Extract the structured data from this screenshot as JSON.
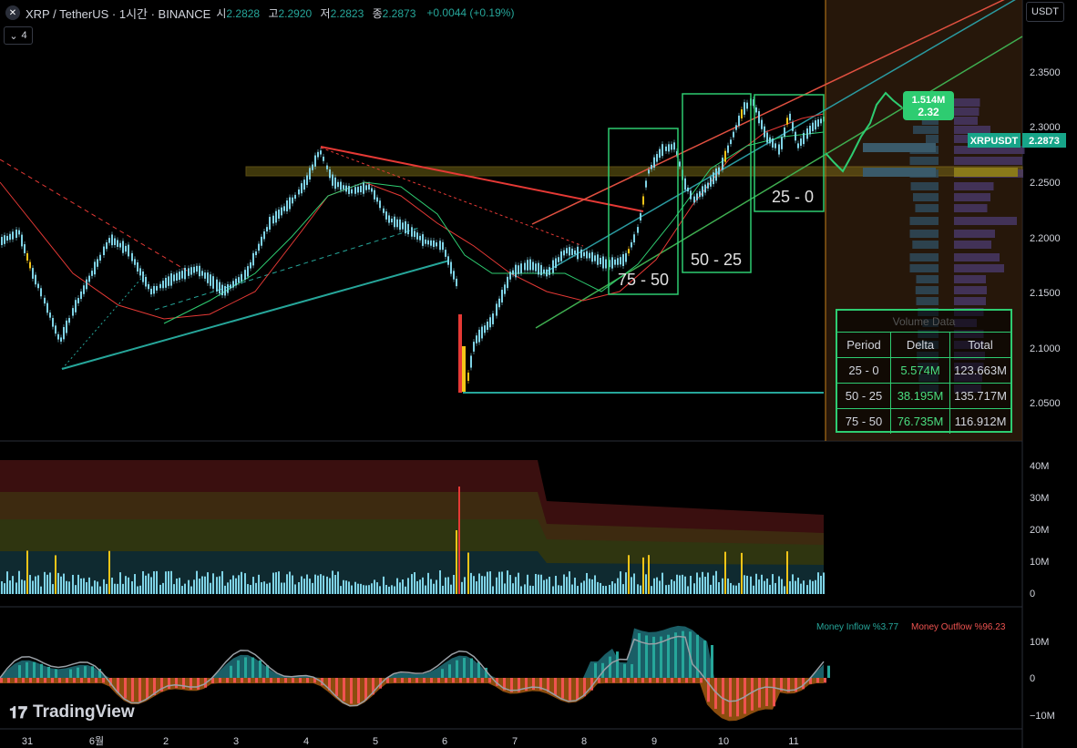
{
  "header": {
    "symbol_icon": "xrp-logo-icon",
    "title": "XRP / TetherUS · 1시간 · BINANCE",
    "open_label": "시",
    "open": "2.2828",
    "high_label": "고",
    "high": "2.2920",
    "low_label": "저",
    "low": "2.2823",
    "close_label": "종",
    "close": "2.2873",
    "change": "+0.0044 (+0.19%)"
  },
  "indicator_toggle": {
    "icon": "chevron-down-icon",
    "count": "4"
  },
  "currency": "USDT",
  "price_axis": {
    "ticks": [
      "2.3500",
      "2.3000",
      "2.2500",
      "2.2000",
      "2.1500",
      "2.1000",
      "2.0500"
    ],
    "current_symbol": "XRPUSDT",
    "current_price": "2.2873"
  },
  "volume_axis": {
    "ticks": [
      "40M",
      "30M",
      "20M",
      "10M",
      "0"
    ]
  },
  "flow_axis": {
    "ticks": [
      "10M",
      "0",
      "−10M"
    ]
  },
  "time_axis": {
    "ticks": [
      "31",
      "6월",
      "2",
      "3",
      "4",
      "5",
      "6",
      "7",
      "8",
      "9",
      "10",
      "11"
    ]
  },
  "boxes": [
    {
      "label": "75 - 50"
    },
    {
      "label": "50 - 25"
    },
    {
      "label": "25 - 0"
    }
  ],
  "forecast_label": {
    "volume": "1.514M",
    "price": "2.32"
  },
  "volume_table": {
    "title": "Volume Data",
    "headers": [
      "Period",
      "Delta",
      "Total"
    ],
    "rows": [
      {
        "period": "25 - 0",
        "delta": "5.574M",
        "total": "123.663M"
      },
      {
        "period": "50 - 25",
        "delta": "38.195M",
        "total": "135.717M"
      },
      {
        "period": "75 - 50",
        "delta": "76.735M",
        "total": "116.912M"
      }
    ]
  },
  "money_flow": {
    "inflow": "Money Inflow %3.77",
    "outflow": "Money Outflow %96.23"
  },
  "brand": {
    "icon": "tradingview-logo-icon",
    "name": "TradingView"
  },
  "chart_data": {
    "type": "line",
    "title": "XRP / TetherUS · 1시간 · BINANCE",
    "xlabel": "",
    "ylabel": "",
    "x": [
      "31",
      "6월",
      "2",
      "3",
      "4",
      "5",
      "6",
      "7",
      "8",
      "9",
      "10",
      "11"
    ],
    "series": [
      {
        "name": "XRPUSDT",
        "values": [
          2.19,
          2.1,
          2.19,
          2.15,
          2.27,
          2.22,
          2.06,
          2.17,
          2.18,
          2.28,
          2.32,
          2.29
        ]
      }
    ],
    "ylim": [
      2.03,
      2.38
    ],
    "grid": false
  },
  "colors": {
    "up": "#7fd3e6",
    "down": "#7fd3e6",
    "highlight": "#f5c518",
    "red": "#e53935",
    "teal": "#26a69a",
    "green": "#2ecc71",
    "box": "#2ecc71"
  }
}
